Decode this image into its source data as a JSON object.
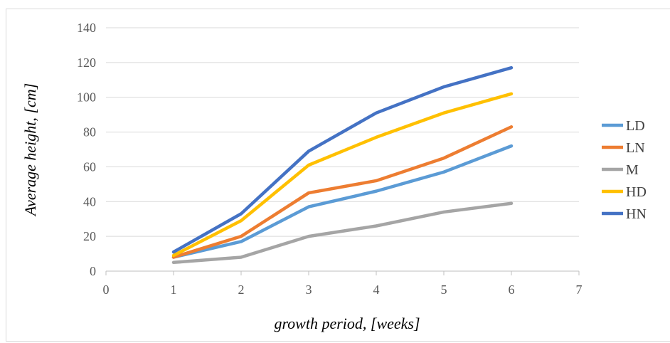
{
  "chart_data": {
    "type": "line",
    "title": "",
    "xlabel": "growth period, [weeks]",
    "ylabel": "Average height, [cm]",
    "xlim": [
      0,
      7
    ],
    "ylim": [
      0,
      140
    ],
    "x_ticks": [
      "0",
      "1",
      "2",
      "3",
      "4",
      "5",
      "6",
      "7"
    ],
    "y_ticks": [
      "0",
      "20",
      "40",
      "60",
      "80",
      "100",
      "120",
      "140"
    ],
    "grid": "horizontal",
    "legend_position": "right",
    "x": [
      1,
      2,
      3,
      4,
      5,
      6
    ],
    "series": [
      {
        "name": "LD",
        "color": "#5b9bd5",
        "values": [
          8,
          17,
          37,
          46,
          57,
          72
        ]
      },
      {
        "name": "LN",
        "color": "#ed7d31",
        "values": [
          8,
          20,
          45,
          52,
          65,
          83
        ]
      },
      {
        "name": "M",
        "color": "#a5a5a5",
        "values": [
          5,
          8,
          20,
          26,
          34,
          39
        ]
      },
      {
        "name": "HD",
        "color": "#ffc000",
        "values": [
          9,
          29,
          61,
          77,
          91,
          102
        ]
      },
      {
        "name": "HN",
        "color": "#4472c4",
        "values": [
          11,
          33,
          69,
          91,
          106,
          117
        ]
      }
    ]
  }
}
